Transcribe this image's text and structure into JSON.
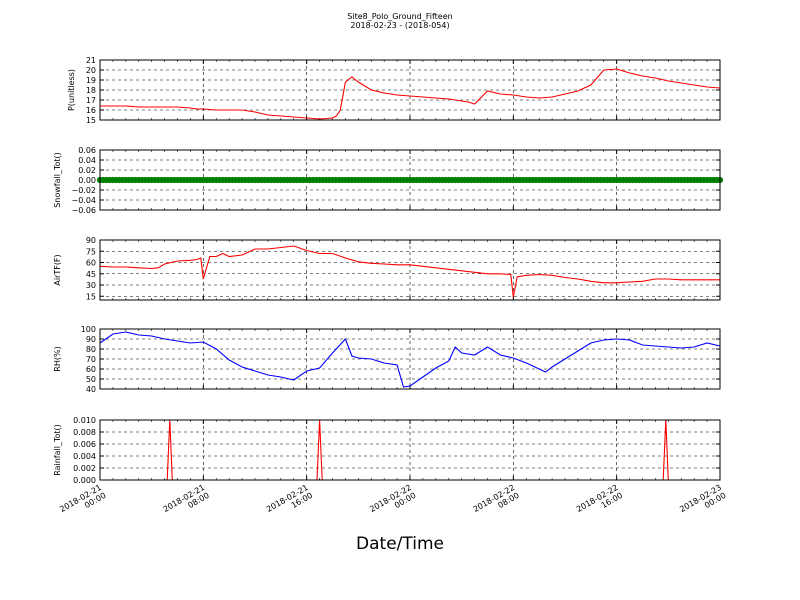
{
  "figure": {
    "title_line1": "Site8_Polo_Ground_Fifteen",
    "title_line2": "2018-02-23 - (2018-054)",
    "xlabel": "Date/Time",
    "x_ticks": [
      "2018-02-21\n00:00",
      "2018-02-21\n08:00",
      "2018-02-21\n16:00",
      "2018-02-22\n00:00",
      "2018-02-22\n08:00",
      "2018-02-22\n16:00",
      "2018-02-23\n00:00"
    ],
    "x_range_hours": [
      0,
      48
    ]
  },
  "chart_data": [
    {
      "type": "line",
      "ylabel": "P(unitless)",
      "ylim": [
        15,
        21
      ],
      "yticks": [
        "15",
        "16",
        "17",
        "18",
        "19",
        "20",
        "21"
      ],
      "grid": true,
      "color": "#ff0000",
      "series": [
        {
          "x_hours": [
            0,
            1,
            2,
            3,
            4,
            5,
            6,
            7,
            7.5,
            8,
            9,
            10,
            11,
            12,
            13,
            14,
            15,
            16,
            17,
            18,
            18.3,
            18.6,
            19,
            19.5,
            20,
            21,
            22,
            23,
            24,
            25,
            26,
            27,
            28,
            28.5,
            29,
            30,
            31,
            32,
            33,
            34,
            35,
            36,
            37,
            38,
            39,
            40,
            41,
            42,
            43,
            44,
            45,
            46,
            47,
            48
          ],
          "y": [
            16.4,
            16.4,
            16.4,
            16.3,
            16.3,
            16.3,
            16.3,
            16.2,
            16.1,
            16.1,
            16.0,
            16.0,
            16.0,
            15.8,
            15.5,
            15.4,
            15.3,
            15.2,
            15.1,
            15.2,
            15.4,
            16.0,
            18.8,
            19.3,
            18.8,
            18.0,
            17.7,
            17.5,
            17.4,
            17.3,
            17.2,
            17.1,
            16.9,
            16.8,
            16.6,
            17.9,
            17.6,
            17.5,
            17.3,
            17.2,
            17.3,
            17.6,
            17.9,
            18.5,
            20.0,
            20.1,
            19.7,
            19.4,
            19.2,
            18.9,
            18.7,
            18.5,
            18.3,
            18.2
          ]
        }
      ]
    },
    {
      "type": "line",
      "ylabel": "Snowfall_Tot()",
      "ylim": [
        -0.06,
        0.06
      ],
      "yticks": [
        "−0.06",
        "−0.04",
        "−0.02",
        "0.00",
        "0.02",
        "0.04",
        "0.06"
      ],
      "grid": true,
      "color": "#008000",
      "marker": "circle",
      "series": [
        {
          "x_hours": [
            0,
            48
          ],
          "y": [
            0.0,
            0.0
          ]
        }
      ]
    },
    {
      "type": "line",
      "ylabel": "AirTF(F)",
      "ylim": [
        10,
        90
      ],
      "yticks": [
        "15",
        "30",
        "45",
        "60",
        "75",
        "90"
      ],
      "grid": true,
      "color": "#ff0000",
      "series": [
        {
          "x_hours": [
            0,
            1,
            2,
            3,
            4,
            4.5,
            5,
            6,
            7,
            7.5,
            7.8,
            8,
            8.5,
            9,
            9.5,
            10,
            11,
            12,
            13,
            14,
            15,
            16,
            17,
            18,
            19,
            20,
            21,
            22,
            23,
            24,
            25,
            26,
            27,
            28,
            29,
            30,
            31,
            31.8,
            32,
            32.3,
            33,
            34,
            35,
            36,
            37,
            38,
            39,
            40,
            41,
            42,
            43,
            44,
            45,
            46,
            47,
            48
          ],
          "y": [
            55,
            54,
            54,
            53,
            52,
            53,
            58,
            62,
            63,
            64,
            66,
            38,
            68,
            68,
            72,
            68,
            70,
            78,
            78,
            80,
            82,
            76,
            72,
            72,
            66,
            61,
            59,
            58,
            57,
            57,
            55,
            53,
            51,
            49,
            47,
            45,
            45,
            44,
            14,
            41,
            43,
            44,
            43,
            40,
            38,
            35,
            33,
            33,
            34,
            35,
            38,
            38,
            37,
            37,
            37,
            37
          ]
        }
      ]
    },
    {
      "type": "line",
      "ylabel": "RH(%)",
      "ylim": [
        40,
        100
      ],
      "yticks": [
        "40",
        "50",
        "60",
        "70",
        "80",
        "90",
        "100"
      ],
      "grid": true,
      "color": "#0000ff",
      "series": [
        {
          "x_hours": [
            0,
            1,
            2,
            3,
            4,
            5,
            6,
            7,
            8,
            9,
            10,
            11,
            12,
            13,
            14,
            15,
            16,
            17,
            18,
            19,
            19.5,
            20,
            21,
            22,
            23,
            23.5,
            24,
            25,
            26,
            27,
            27.5,
            28,
            29,
            30,
            31,
            32,
            33,
            34,
            34.5,
            35,
            36,
            37,
            38,
            39,
            40,
            41,
            42,
            43,
            44,
            45,
            46,
            47,
            48
          ],
          "y": [
            86,
            95,
            97,
            94,
            93,
            90,
            88,
            86,
            87,
            80,
            69,
            62,
            58,
            54,
            52,
            49,
            58,
            61,
            76,
            90,
            73,
            71,
            70,
            66,
            64,
            42,
            43,
            52,
            61,
            68,
            82,
            76,
            74,
            82,
            74,
            71,
            66,
            60,
            57,
            62,
            70,
            78,
            86,
            89,
            90,
            89,
            84,
            83,
            82,
            81,
            82,
            86,
            83
          ]
        }
      ]
    },
    {
      "type": "line",
      "ylabel": "Rainfall_Tot()",
      "ylim": [
        0,
        0.01
      ],
      "yticks": [
        "0.000",
        "0.002",
        "0.004",
        "0.006",
        "0.008",
        "0.010"
      ],
      "grid": true,
      "color": "#ff0000",
      "series": [
        {
          "x_hours": [
            0,
            5.2,
            5.4,
            5.6,
            16.8,
            17.0,
            17.2,
            43.6,
            43.8,
            44.0,
            48
          ],
          "y": [
            0,
            0,
            0.01,
            0,
            0,
            0.01,
            0,
            0,
            0.01,
            0,
            0
          ]
        }
      ]
    }
  ]
}
